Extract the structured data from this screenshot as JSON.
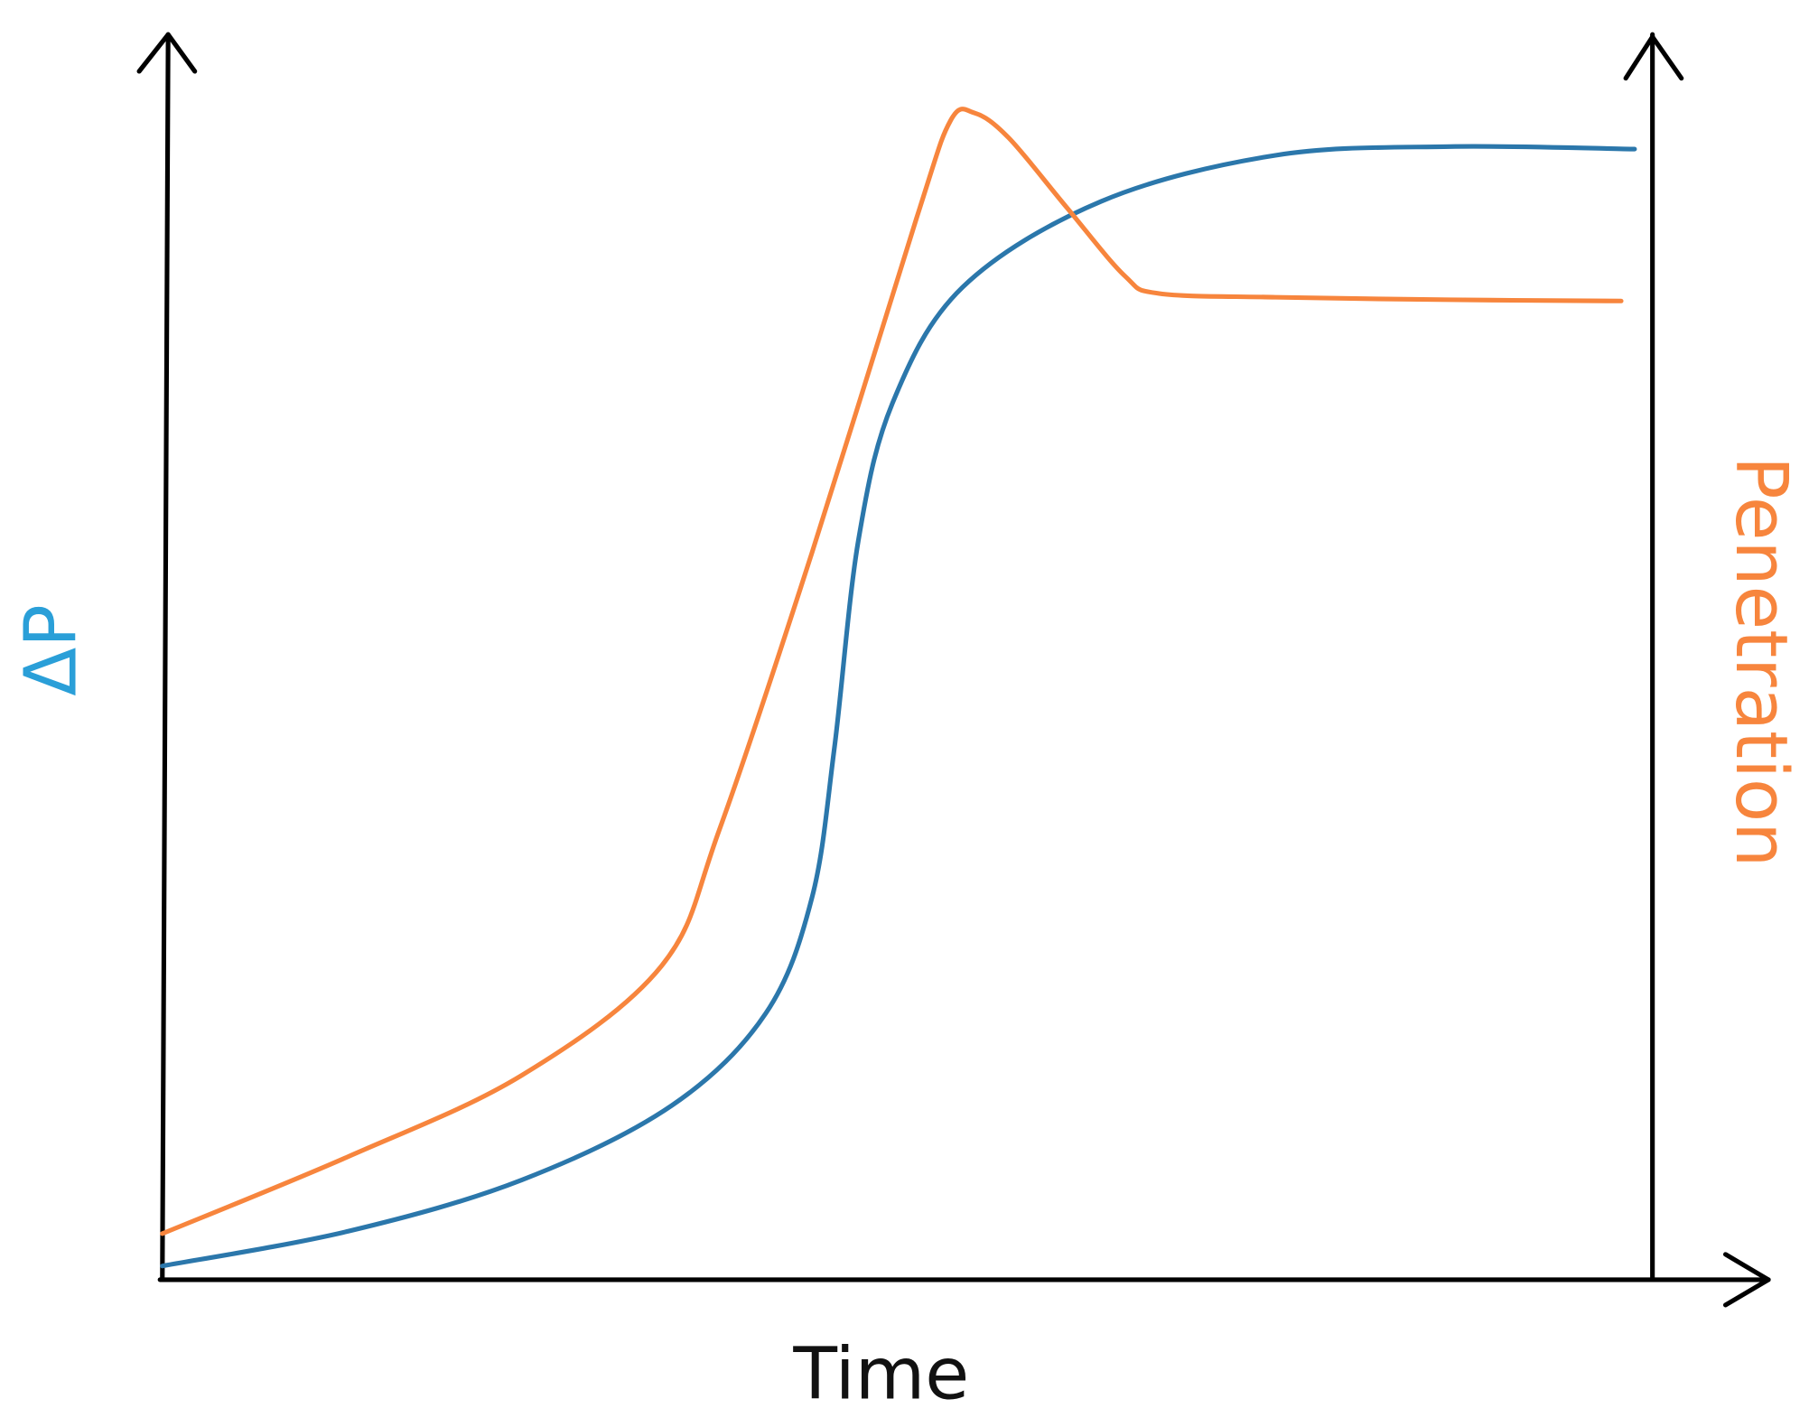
{
  "chart_data": {
    "type": "line",
    "x_label": "Time",
    "y_label": "ΔP",
    "y2_label": "Penetration",
    "xlim": [
      0,
      100
    ],
    "ylim": [
      0,
      100
    ],
    "y2lim": [
      0,
      100
    ],
    "grid": false,
    "series": [
      {
        "color": "#2b77ab",
        "axis": "y",
        "x": [
          0,
          12.5,
          24.1,
          34.2,
          40.5,
          43.6,
          45.1,
          46.7,
          49.0,
          53.7,
          63.0,
          74.7,
          86.4,
          98.8
        ],
        "values": [
          1.1,
          3.9,
          8.0,
          14.0,
          21.4,
          30.7,
          42.7,
          59.3,
          70.4,
          79.7,
          86.6,
          90.3,
          91.0,
          90.8
        ]
      },
      {
        "color": "#f7853d",
        "axis": "y2",
        "x": [
          0,
          12.5,
          24.1,
          33.5,
          37.4,
          43.6,
          50.6,
          52.9,
          54.5,
          56.8,
          60.7,
          64.6,
          66.9,
          74.7,
          86.4,
          97.9
        ],
        "values": [
          3.7,
          9.9,
          16.4,
          25.2,
          36.2,
          58.4,
          85.2,
          93.1,
          93.7,
          91.7,
          86.1,
          80.6,
          79.2,
          78.9,
          78.7,
          78.6
        ]
      }
    ]
  }
}
